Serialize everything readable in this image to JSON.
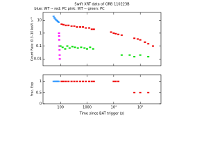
{
  "chart_data": [
    {
      "type": "scatter",
      "title": "Swift XRT data of GRB 110223B",
      "subtitle": "blue: WT -- red: PC    pink: WT -- green: PC",
      "ylabel": "Count Rate (0.3–10 keV) s⁻¹",
      "logx": true,
      "logy": true,
      "xlim": [
        22,
        600000
      ],
      "ylim": [
        0.003,
        40
      ],
      "xticks": [
        100,
        1000,
        10000,
        100000
      ],
      "yticks": [
        10,
        1,
        0.1,
        0.01
      ],
      "series": [
        {
          "name": "WT",
          "color": "#3399ff",
          "x": [
            55,
            60,
            65,
            70,
            75,
            80,
            85
          ],
          "y": [
            20,
            15,
            12,
            10,
            9,
            8,
            7
          ]
        },
        {
          "name": "WT",
          "color": "#ff00ff",
          "x": [
            88,
            89,
            90,
            91,
            92,
            93,
            94
          ],
          "y": [
            1.0,
            0.6,
            0.3,
            0.1,
            0.05,
            0.02,
            0.01
          ]
        },
        {
          "name": "PC",
          "color": "#ee0000",
          "x": [
            110,
            130,
            160,
            200,
            260,
            330,
            420,
            550,
            700,
            900,
            1200,
            1500,
            1800,
            8000,
            10000,
            12000,
            15000,
            20000,
            60000,
            80000,
            100000,
            150000,
            200000,
            300000
          ],
          "y": [
            5,
            4.5,
            4,
            4,
            3.5,
            3.5,
            3,
            3,
            3,
            2.5,
            2.5,
            2,
            2,
            1.2,
            1,
            0.9,
            0.8,
            0.7,
            0.4,
            0.35,
            0.3,
            0.2,
            0.15,
            0.1
          ]
        },
        {
          "name": "PC",
          "color": "#00dd00",
          "x": [
            100,
            120,
            150,
            180,
            220,
            280,
            350,
            450,
            600,
            800,
            1000,
            1300,
            1700,
            20000,
            40000,
            60000,
            100000,
            200000
          ],
          "y": [
            0.1,
            0.08,
            0.06,
            0.1,
            0.07,
            0.09,
            0.08,
            0.07,
            0.08,
            0.07,
            0.06,
            0.08,
            0.06,
            0.02,
            0.02,
            0.015,
            0.02,
            0.015
          ]
        }
      ]
    },
    {
      "type": "scatter",
      "ylabel": "Frac. Exp",
      "xlabel": "Time since BAT trigger (s)",
      "logx": true,
      "logy": false,
      "xlim": [
        22,
        600000
      ],
      "ylim": [
        0,
        1.3
      ],
      "xticks": [
        100,
        1000,
        {
          "value": 10000,
          "label": "10⁴"
        },
        {
          "value": 100000,
          "label": "10⁵"
        }
      ],
      "yticks": [
        0,
        0.5,
        1
      ],
      "series": [
        {
          "name": "WT",
          "color": "#3399ff",
          "x": [
            55,
            60,
            65,
            70,
            75,
            80,
            85
          ],
          "y": [
            1,
            1,
            1,
            1,
            1,
            1,
            1
          ]
        },
        {
          "name": "PC",
          "color": "#ee0000",
          "x": [
            110,
            130,
            160,
            200,
            260,
            330,
            420,
            550,
            700,
            900,
            1200,
            1500,
            1800,
            10000,
            12000,
            15000,
            60000,
            100000,
            200000
          ],
          "y": [
            1,
            1,
            1,
            1,
            1,
            1,
            1,
            1,
            1,
            1,
            1,
            1,
            1,
            1,
            1,
            1,
            0.5,
            0.5,
            0.5
          ]
        }
      ]
    }
  ]
}
